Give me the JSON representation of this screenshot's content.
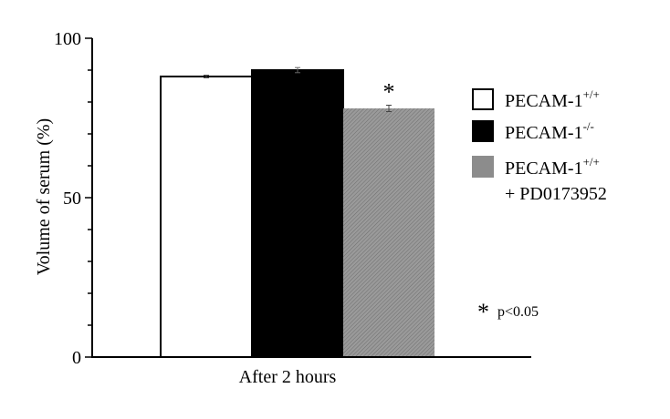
{
  "chart_data": {
    "type": "bar",
    "categories": [
      "After 2 hours"
    ],
    "xlabel": "After 2 hours",
    "ylabel": "Volume of serum (%)",
    "ylim": [
      0,
      100
    ],
    "yticks": [
      0,
      50,
      100
    ],
    "grid": false,
    "legend_position": "right",
    "series": [
      {
        "name": "PECAM-1",
        "name_sup": "+/+",
        "name_line2": "",
        "values": [
          88
        ],
        "error": [
          0.4
        ],
        "color": "#ffffff",
        "significance": ""
      },
      {
        "name": "PECAM-1",
        "name_sup": "-/-",
        "name_line2": "",
        "values": [
          90
        ],
        "error": [
          0.8
        ],
        "color": "#000000",
        "significance": ""
      },
      {
        "name": "PECAM-1",
        "name_sup": "+/+",
        "name_line2": "+ PD0173952",
        "values": [
          78
        ],
        "error": [
          1.0
        ],
        "color": "#8c8c8c",
        "significance": "*"
      }
    ],
    "annotation": {
      "star": "*",
      "text": "p<0.05"
    }
  }
}
